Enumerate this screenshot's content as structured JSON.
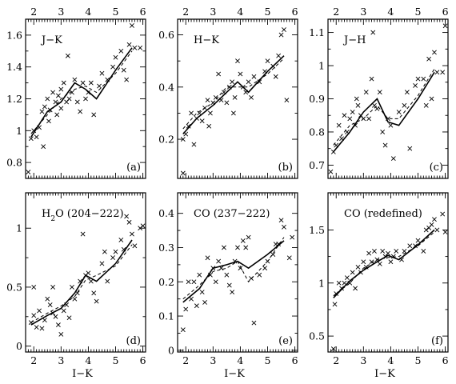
{
  "chart_data": [
    {
      "type": "scatter",
      "panel": "(a)",
      "title": "J−K",
      "xlabel": "",
      "ylabel": "",
      "xlim": [
        1.7,
        6.1
      ],
      "ylim": [
        0.7,
        1.7
      ],
      "xticks": [
        2,
        3,
        4,
        5,
        6
      ],
      "yticks": [
        0.8,
        1,
        1.2,
        1.4,
        1.6
      ],
      "points": [
        [
          1.8,
          0.74
        ],
        [
          1.9,
          0.95
        ],
        [
          2.0,
          1.0
        ],
        [
          2.1,
          0.96
        ],
        [
          2.2,
          1.02
        ],
        [
          2.3,
          1.12
        ],
        [
          2.35,
          0.9
        ],
        [
          2.4,
          1.15
        ],
        [
          2.5,
          1.2
        ],
        [
          2.55,
          1.06
        ],
        [
          2.6,
          1.13
        ],
        [
          2.7,
          1.24
        ],
        [
          2.8,
          1.18
        ],
        [
          2.85,
          1.1
        ],
        [
          2.9,
          1.22
        ],
        [
          3.0,
          1.14
        ],
        [
          3.0,
          1.26
        ],
        [
          3.1,
          1.3
        ],
        [
          3.2,
          1.18
        ],
        [
          3.25,
          1.47
        ],
        [
          3.3,
          1.2
        ],
        [
          3.4,
          1.24
        ],
        [
          3.5,
          1.32
        ],
        [
          3.6,
          1.18
        ],
        [
          3.7,
          1.12
        ],
        [
          3.8,
          1.3
        ],
        [
          3.9,
          1.2
        ],
        [
          4.0,
          1.24
        ],
        [
          4.1,
          1.3
        ],
        [
          4.2,
          1.1
        ],
        [
          4.4,
          1.28
        ],
        [
          4.5,
          1.36
        ],
        [
          4.7,
          1.32
        ],
        [
          4.9,
          1.4
        ],
        [
          5.0,
          1.46
        ],
        [
          5.2,
          1.5
        ],
        [
          5.3,
          1.38
        ],
        [
          5.4,
          1.32
        ],
        [
          5.5,
          1.54
        ],
        [
          5.6,
          1.66
        ],
        [
          5.7,
          1.52
        ],
        [
          5.9,
          1.52
        ]
      ],
      "series": [
        {
          "style": "solid",
          "x": [
            1.9,
            2.5,
            3.0,
            3.5,
            3.9,
            4.3,
            5.0,
            5.6
          ],
          "y": [
            0.96,
            1.12,
            1.18,
            1.3,
            1.26,
            1.2,
            1.38,
            1.52
          ]
        },
        {
          "style": "dashed",
          "x": [
            1.9,
            2.5,
            3.0,
            3.5,
            3.9,
            4.3,
            5.0,
            5.6
          ],
          "y": [
            0.98,
            1.1,
            1.2,
            1.26,
            1.28,
            1.24,
            1.36,
            1.5
          ]
        }
      ]
    },
    {
      "type": "scatter",
      "panel": "(b)",
      "title": "H−K",
      "xlabel": "",
      "ylabel": "",
      "xlim": [
        1.7,
        6.1
      ],
      "ylim": [
        0.05,
        0.66
      ],
      "xticks": [
        2,
        3,
        4,
        5,
        6
      ],
      "yticks": [
        0.2,
        0.4,
        0.6
      ],
      "points": [
        [
          1.9,
          0.07
        ],
        [
          1.9,
          0.2
        ],
        [
          2.0,
          0.22
        ],
        [
          2.1,
          0.25
        ],
        [
          2.2,
          0.3
        ],
        [
          2.3,
          0.18
        ],
        [
          2.4,
          0.28
        ],
        [
          2.5,
          0.3
        ],
        [
          2.6,
          0.27
        ],
        [
          2.7,
          0.32
        ],
        [
          2.8,
          0.35
        ],
        [
          2.85,
          0.25
        ],
        [
          2.9,
          0.3
        ],
        [
          3.0,
          0.34
        ],
        [
          3.1,
          0.36
        ],
        [
          3.2,
          0.45
        ],
        [
          3.3,
          0.35
        ],
        [
          3.4,
          0.38
        ],
        [
          3.5,
          0.34
        ],
        [
          3.6,
          0.4
        ],
        [
          3.7,
          0.42
        ],
        [
          3.75,
          0.3
        ],
        [
          3.8,
          0.36
        ],
        [
          3.9,
          0.5
        ],
        [
          4.0,
          0.45
        ],
        [
          4.1,
          0.4
        ],
        [
          4.2,
          0.38
        ],
        [
          4.3,
          0.42
        ],
        [
          4.4,
          0.36
        ],
        [
          4.5,
          0.44
        ],
        [
          4.7,
          0.42
        ],
        [
          4.9,
          0.46
        ],
        [
          5.0,
          0.5
        ],
        [
          5.2,
          0.48
        ],
        [
          5.3,
          0.44
        ],
        [
          5.4,
          0.52
        ],
        [
          5.5,
          0.6
        ],
        [
          5.6,
          0.62
        ],
        [
          5.7,
          0.35
        ]
      ],
      "series": [
        {
          "style": "solid",
          "x": [
            1.9,
            2.4,
            3.0,
            3.5,
            3.9,
            4.3,
            5.0,
            5.6
          ],
          "y": [
            0.22,
            0.28,
            0.33,
            0.38,
            0.42,
            0.38,
            0.46,
            0.52
          ]
        },
        {
          "style": "dashed",
          "x": [
            1.9,
            2.4,
            3.0,
            3.5,
            3.9,
            4.3,
            5.0,
            5.6
          ],
          "y": [
            0.24,
            0.3,
            0.34,
            0.4,
            0.4,
            0.4,
            0.45,
            0.51
          ]
        }
      ]
    },
    {
      "type": "scatter",
      "panel": "(c)",
      "title": "J−H",
      "xlabel": "",
      "ylabel": "",
      "xlim": [
        1.7,
        6.1
      ],
      "ylim": [
        0.66,
        1.14
      ],
      "xticks": [
        2,
        3,
        4,
        5,
        6
      ],
      "yticks": [
        0.7,
        0.8,
        0.9,
        1,
        1.1
      ],
      "points": [
        [
          1.8,
          0.68
        ],
        [
          1.9,
          0.74
        ],
        [
          2.0,
          0.76
        ],
        [
          2.1,
          0.82
        ],
        [
          2.2,
          0.78
        ],
        [
          2.3,
          0.85
        ],
        [
          2.4,
          0.8
        ],
        [
          2.5,
          0.84
        ],
        [
          2.6,
          0.86
        ],
        [
          2.7,
          0.82
        ],
        [
          2.75,
          0.9
        ],
        [
          2.8,
          0.88
        ],
        [
          2.9,
          0.85
        ],
        [
          3.0,
          0.84
        ],
        [
          3.1,
          0.92
        ],
        [
          3.2,
          0.84
        ],
        [
          3.3,
          0.96
        ],
        [
          3.4,
          0.88
        ],
        [
          3.5,
          0.87
        ],
        [
          3.6,
          0.92
        ],
        [
          3.7,
          0.8
        ],
        [
          3.8,
          0.76
        ],
        [
          3.9,
          0.84
        ],
        [
          4.0,
          0.82
        ],
        [
          4.1,
          0.72
        ],
        [
          4.3,
          0.86
        ],
        [
          4.5,
          0.88
        ],
        [
          4.6,
          0.92
        ],
        [
          4.7,
          0.75
        ],
        [
          4.9,
          0.94
        ],
        [
          5.0,
          0.96
        ],
        [
          5.2,
          0.96
        ],
        [
          5.3,
          0.88
        ],
        [
          5.4,
          1.02
        ],
        [
          5.5,
          0.9
        ],
        [
          5.6,
          1.04
        ],
        [
          5.7,
          0.98
        ],
        [
          5.9,
          0.98
        ],
        [
          6.0,
          1.12
        ],
        [
          3.35,
          1.1
        ]
      ],
      "series": [
        {
          "style": "solid",
          "x": [
            1.9,
            2.5,
            3.0,
            3.5,
            3.9,
            4.3,
            5.0,
            5.6
          ],
          "y": [
            0.74,
            0.8,
            0.86,
            0.9,
            0.83,
            0.82,
            0.9,
            0.98
          ]
        },
        {
          "style": "dashed",
          "x": [
            1.9,
            2.5,
            3.0,
            3.5,
            3.9,
            4.3,
            5.0,
            5.6
          ],
          "y": [
            0.76,
            0.82,
            0.84,
            0.88,
            0.84,
            0.84,
            0.91,
            0.99
          ]
        }
      ]
    },
    {
      "type": "scatter",
      "panel": "(d)",
      "title": "H2O (204−222)",
      "xlabel": "I−K",
      "ylabel": "",
      "xlim": [
        1.7,
        6.1
      ],
      "ylim": [
        -0.05,
        1.3
      ],
      "xticks": [
        2,
        3,
        4,
        5,
        6
      ],
      "yticks": [
        0,
        0.5,
        1
      ],
      "points": [
        [
          1.9,
          0.2
        ],
        [
          2.0,
          0.26
        ],
        [
          2.1,
          0.16
        ],
        [
          2.2,
          0.3
        ],
        [
          2.3,
          0.15
        ],
        [
          2.4,
          0.22
        ],
        [
          2.5,
          0.4
        ],
        [
          2.6,
          0.35
        ],
        [
          2.7,
          0.28
        ],
        [
          2.8,
          0.25
        ],
        [
          2.9,
          0.18
        ],
        [
          3.0,
          0.1
        ],
        [
          3.1,
          0.3
        ],
        [
          3.2,
          0.35
        ],
        [
          3.3,
          0.24
        ],
        [
          3.4,
          0.5
        ],
        [
          3.5,
          0.4
        ],
        [
          3.6,
          0.45
        ],
        [
          3.7,
          0.55
        ],
        [
          3.8,
          0.95
        ],
        [
          3.9,
          0.6
        ],
        [
          4.0,
          0.62
        ],
        [
          4.1,
          0.55
        ],
        [
          4.2,
          0.45
        ],
        [
          4.3,
          0.38
        ],
        [
          4.5,
          0.7
        ],
        [
          4.6,
          0.8
        ],
        [
          4.7,
          0.55
        ],
        [
          4.9,
          0.75
        ],
        [
          5.0,
          0.8
        ],
        [
          5.2,
          0.9
        ],
        [
          5.3,
          0.82
        ],
        [
          5.4,
          1.1
        ],
        [
          5.5,
          1.05
        ],
        [
          5.6,
          0.95
        ],
        [
          5.7,
          0.85
        ],
        [
          5.9,
          1.0
        ],
        [
          6.0,
          1.02
        ],
        [
          2.0,
          0.5
        ],
        [
          2.7,
          0.5
        ]
      ],
      "series": [
        {
          "style": "solid",
          "x": [
            1.9,
            2.5,
            3.0,
            3.5,
            3.9,
            4.3,
            5.0,
            5.6
          ],
          "y": [
            0.18,
            0.26,
            0.32,
            0.45,
            0.6,
            0.55,
            0.7,
            0.9
          ]
        },
        {
          "style": "dashed",
          "x": [
            1.9,
            2.5,
            3.0,
            3.5,
            3.9,
            4.3,
            5.0,
            5.6
          ],
          "y": [
            0.2,
            0.28,
            0.34,
            0.42,
            0.56,
            0.6,
            0.68,
            0.86
          ]
        }
      ]
    },
    {
      "type": "scatter",
      "panel": "(e)",
      "title": "CO (237−222)",
      "xlabel": "I−K",
      "ylabel": "",
      "xlim": [
        1.7,
        6.1
      ],
      "ylim": [
        -0.005,
        0.46
      ],
      "xticks": [
        2,
        3,
        4,
        5,
        6
      ],
      "yticks": [
        0,
        0.1,
        0.2,
        0.3,
        0.4
      ],
      "points": [
        [
          1.9,
          0.06
        ],
        [
          2.0,
          0.12
        ],
        [
          2.1,
          0.2
        ],
        [
          2.2,
          0.15
        ],
        [
          2.3,
          0.2
        ],
        [
          2.4,
          0.13
        ],
        [
          2.5,
          0.22
        ],
        [
          2.6,
          0.17
        ],
        [
          2.7,
          0.14
        ],
        [
          2.8,
          0.27
        ],
        [
          2.9,
          0.22
        ],
        [
          3.0,
          0.24
        ],
        [
          3.1,
          0.2
        ],
        [
          3.2,
          0.26
        ],
        [
          3.3,
          0.24
        ],
        [
          3.4,
          0.3
        ],
        [
          3.5,
          0.22
        ],
        [
          3.6,
          0.19
        ],
        [
          3.7,
          0.17
        ],
        [
          3.8,
          0.26
        ],
        [
          3.9,
          0.3
        ],
        [
          4.0,
          0.24
        ],
        [
          4.1,
          0.32
        ],
        [
          4.2,
          0.3
        ],
        [
          4.3,
          0.33
        ],
        [
          4.4,
          0.21
        ],
        [
          4.5,
          0.08
        ],
        [
          4.7,
          0.22
        ],
        [
          4.9,
          0.24
        ],
        [
          5.0,
          0.26
        ],
        [
          5.2,
          0.28
        ],
        [
          5.3,
          0.31
        ],
        [
          5.4,
          0.31
        ],
        [
          5.5,
          0.38
        ],
        [
          5.6,
          0.36
        ],
        [
          5.8,
          0.27
        ],
        [
          5.9,
          0.33
        ]
      ],
      "series": [
        {
          "style": "solid",
          "x": [
            1.9,
            2.5,
            3.0,
            3.5,
            3.9,
            4.3,
            5.0,
            5.6
          ],
          "y": [
            0.14,
            0.18,
            0.24,
            0.25,
            0.26,
            0.24,
            0.28,
            0.32
          ]
        },
        {
          "style": "dashed",
          "x": [
            1.9,
            2.5,
            3.0,
            3.5,
            3.9,
            4.3,
            5.0,
            5.6
          ],
          "y": [
            0.15,
            0.19,
            0.23,
            0.24,
            0.26,
            0.2,
            0.26,
            0.33
          ]
        }
      ]
    },
    {
      "type": "scatter",
      "panel": "(f)",
      "title": "CO (redefined)",
      "xlabel": "I−K",
      "ylabel": "",
      "xlim": [
        1.7,
        6.1
      ],
      "ylim": [
        0.35,
        1.85
      ],
      "xticks": [
        2,
        3,
        4,
        5,
        6
      ],
      "yticks": [
        0.5,
        1,
        1.5
      ],
      "points": [
        [
          1.9,
          0.38
        ],
        [
          1.95,
          0.8
        ],
        [
          2.0,
          0.9
        ],
        [
          2.1,
          1.0
        ],
        [
          2.2,
          0.95
        ],
        [
          2.3,
          1.0
        ],
        [
          2.4,
          1.05
        ],
        [
          2.5,
          1.0
        ],
        [
          2.6,
          1.1
        ],
        [
          2.7,
          0.95
        ],
        [
          2.8,
          1.15
        ],
        [
          2.9,
          1.1
        ],
        [
          3.0,
          1.2
        ],
        [
          3.1,
          1.15
        ],
        [
          3.2,
          1.28
        ],
        [
          3.3,
          1.2
        ],
        [
          3.4,
          1.3
        ],
        [
          3.5,
          1.22
        ],
        [
          3.6,
          1.18
        ],
        [
          3.7,
          1.3
        ],
        [
          3.8,
          1.25
        ],
        [
          3.9,
          1.28
        ],
        [
          4.0,
          1.2
        ],
        [
          4.1,
          1.25
        ],
        [
          4.2,
          1.3
        ],
        [
          4.4,
          1.22
        ],
        [
          4.5,
          1.3
        ],
        [
          4.7,
          1.35
        ],
        [
          4.9,
          1.35
        ],
        [
          5.0,
          1.4
        ],
        [
          5.2,
          1.3
        ],
        [
          5.3,
          1.5
        ],
        [
          5.4,
          1.52
        ],
        [
          5.5,
          1.55
        ],
        [
          5.6,
          1.6
        ],
        [
          5.7,
          1.5
        ],
        [
          5.9,
          1.65
        ],
        [
          6.0,
          1.48
        ]
      ],
      "series": [
        {
          "style": "solid",
          "x": [
            1.9,
            2.5,
            3.0,
            3.5,
            3.9,
            4.3,
            5.0,
            5.6
          ],
          "y": [
            0.86,
            1.02,
            1.12,
            1.2,
            1.26,
            1.22,
            1.36,
            1.5
          ]
        },
        {
          "style": "dashed",
          "x": [
            1.9,
            2.5,
            3.0,
            3.5,
            3.9,
            4.3,
            5.0,
            5.6
          ],
          "y": [
            0.88,
            1.0,
            1.14,
            1.22,
            1.24,
            1.25,
            1.35,
            1.48
          ]
        }
      ]
    }
  ]
}
